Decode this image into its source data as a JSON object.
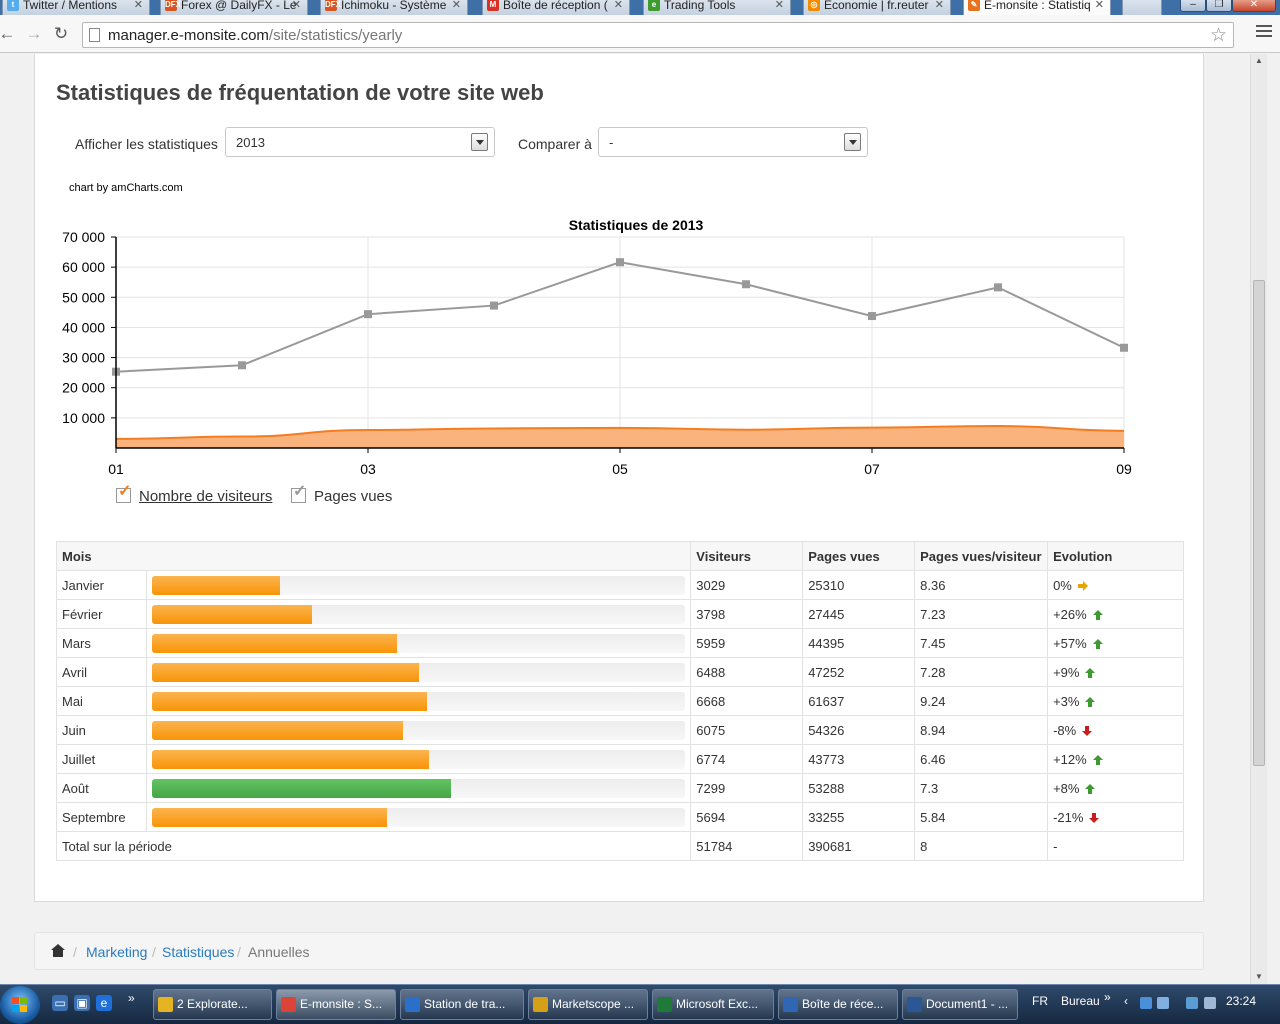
{
  "browser": {
    "tabs": [
      {
        "label": "Twitter / Mentions",
        "icon": "twitter-icon",
        "color": "#55acee",
        "glyph": "t"
      },
      {
        "label": "Forex @ DailyFX - Le",
        "icon": "dailyfx-icon",
        "color": "#d9531e",
        "glyph": "DFX"
      },
      {
        "label": "Ichimoku - Système",
        "icon": "dailyfx-icon",
        "color": "#d9531e",
        "glyph": "DFX"
      },
      {
        "label": "Boîte de réception (",
        "icon": "gmail-icon",
        "color": "#d93025",
        "glyph": "M"
      },
      {
        "label": "Trading Tools",
        "icon": "trading-tools-icon",
        "color": "#3c9a2e",
        "glyph": "e"
      },
      {
        "label": "Economie | fr.reuter",
        "icon": "reuters-icon",
        "color": "#f28b00",
        "glyph": "◎"
      },
      {
        "label": "E-monsite : Statistiq",
        "icon": "emonsite-icon",
        "color": "#e8731e",
        "glyph": "✎"
      }
    ],
    "url_domain": "manager.e-monsite.com",
    "url_path": "/site/statistics/yearly"
  },
  "page": {
    "title": "Statistiques de fréquentation de votre site web",
    "show_label": "Afficher les statistiques",
    "show_value": "2013",
    "compare_label": "Comparer à",
    "compare_value": "-",
    "credit": "chart by amCharts.com"
  },
  "chart_data": {
    "type": "line",
    "title": "Statistiques de 2013",
    "x": [
      "01",
      "02",
      "03",
      "04",
      "05",
      "06",
      "07",
      "08",
      "09"
    ],
    "x_tick_labels": [
      "01",
      "03",
      "05",
      "07",
      "09"
    ],
    "y_tick_labels": [
      "10 000",
      "20 000",
      "30 000",
      "40 000",
      "50 000",
      "60 000",
      "70 000"
    ],
    "ylim": [
      0,
      70000
    ],
    "grid": true,
    "legend_position": "bottom-left",
    "series": [
      {
        "name": "Nombre de visiteurs",
        "kind": "area",
        "color": "#f47d23",
        "fill": "#fbb37e",
        "values": [
          3029,
          3798,
          5959,
          6488,
          6668,
          6075,
          6774,
          7299,
          5694
        ]
      },
      {
        "name": "Pages vues",
        "kind": "line",
        "color": "#999999",
        "values": [
          25310,
          27445,
          44395,
          47252,
          61637,
          54326,
          43773,
          53288,
          33255
        ]
      }
    ]
  },
  "table": {
    "headers": [
      "Mois",
      "Visiteurs",
      "Pages vues",
      "Pages vues/visiteur",
      "Evolution"
    ],
    "rows": [
      {
        "month": "Janvier",
        "visitors": "3029",
        "pageviews": "25310",
        "ratio": "8.36",
        "evolution": "0%",
        "trend": "flat",
        "bar": 0.24,
        "highlight": false
      },
      {
        "month": "Février",
        "visitors": "3798",
        "pageviews": "27445",
        "ratio": "7.23",
        "evolution": "+26%",
        "trend": "up",
        "bar": 0.3,
        "highlight": false
      },
      {
        "month": "Mars",
        "visitors": "5959",
        "pageviews": "44395",
        "ratio": "7.45",
        "evolution": "+57%",
        "trend": "up",
        "bar": 0.46,
        "highlight": false
      },
      {
        "month": "Avril",
        "visitors": "6488",
        "pageviews": "47252",
        "ratio": "7.28",
        "evolution": "+9%",
        "trend": "up",
        "bar": 0.5,
        "highlight": false
      },
      {
        "month": "Mai",
        "visitors": "6668",
        "pageviews": "61637",
        "ratio": "9.24",
        "evolution": "+3%",
        "trend": "up",
        "bar": 0.515,
        "highlight": false
      },
      {
        "month": "Juin",
        "visitors": "6075",
        "pageviews": "54326",
        "ratio": "8.94",
        "evolution": "-8%",
        "trend": "down",
        "bar": 0.47,
        "highlight": false
      },
      {
        "month": "Juillet",
        "visitors": "6774",
        "pageviews": "43773",
        "ratio": "6.46",
        "evolution": "+12%",
        "trend": "up",
        "bar": 0.52,
        "highlight": false
      },
      {
        "month": "Août",
        "visitors": "7299",
        "pageviews": "53288",
        "ratio": "7.3",
        "evolution": "+8%",
        "trend": "up",
        "bar": 0.56,
        "highlight": true
      },
      {
        "month": "Septembre",
        "visitors": "5694",
        "pageviews": "33255",
        "ratio": "5.84",
        "evolution": "-21%",
        "trend": "down",
        "bar": 0.44,
        "highlight": false
      }
    ],
    "total": {
      "label": "Total sur la période",
      "visitors": "51784",
      "pageviews": "390681",
      "ratio": "8",
      "evolution": "-"
    }
  },
  "breadcrumb": {
    "items": [
      "Marketing",
      "Statistiques",
      "Annuelles"
    ]
  },
  "taskbar": {
    "buttons": [
      {
        "label": "2 Explorate...",
        "icon": "folder-icon",
        "color": "#e6b422"
      },
      {
        "label": "E-monsite : S...",
        "icon": "chrome-icon",
        "color": "#db4437"
      },
      {
        "label": "Station de tra...",
        "icon": "trading-station-icon",
        "color": "#2a6fc9"
      },
      {
        "label": "Marketscope ...",
        "icon": "marketscope-icon",
        "color": "#d4a017"
      },
      {
        "label": "Microsoft Exc...",
        "icon": "excel-icon",
        "color": "#1f7a3a"
      },
      {
        "label": "Boîte de réce...",
        "icon": "outlook-icon",
        "color": "#2f67b5"
      },
      {
        "label": "Document1 - ...",
        "icon": "word-icon",
        "color": "#2b5797"
      }
    ],
    "lang": "FR",
    "desktop_label": "Bureau",
    "clock": "23:24"
  }
}
